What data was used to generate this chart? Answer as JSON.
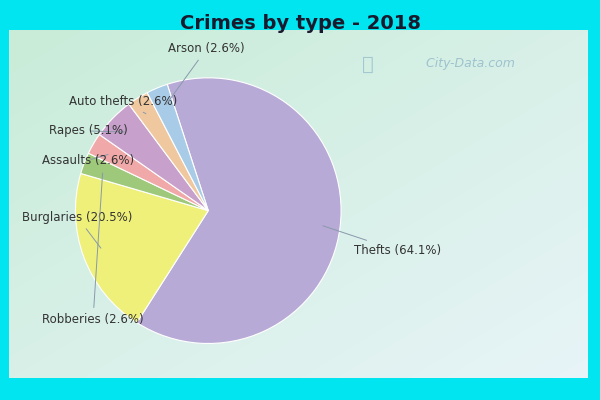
{
  "title": "Crimes by type - 2018",
  "slices": [
    {
      "label": "Thefts (64.1%)",
      "value": 64.1,
      "color": "#b8aad6"
    },
    {
      "label": "Burglaries (20.5%)",
      "value": 20.5,
      "color": "#eef07a"
    },
    {
      "label": "Robberies (2.6%)",
      "value": 2.6,
      "color": "#9ec87a"
    },
    {
      "label": "Assaults (2.6%)",
      "value": 2.6,
      "color": "#f0a8a8"
    },
    {
      "label": "Rapes (5.1%)",
      "value": 5.1,
      "color": "#c8a0cc"
    },
    {
      "label": "Auto thefts (2.6%)",
      "value": 2.6,
      "color": "#f0c8a0"
    },
    {
      "label": "Arson (2.6%)",
      "value": 2.6,
      "color": "#a8cce8"
    }
  ],
  "bg_outer": "#00e5f0",
  "bg_inner_tl": "#c8ecd8",
  "bg_inner_br": "#e8f4f8",
  "title_fontsize": 14,
  "label_fontsize": 8.5,
  "watermark": " City-Data.com",
  "startangle": 108
}
